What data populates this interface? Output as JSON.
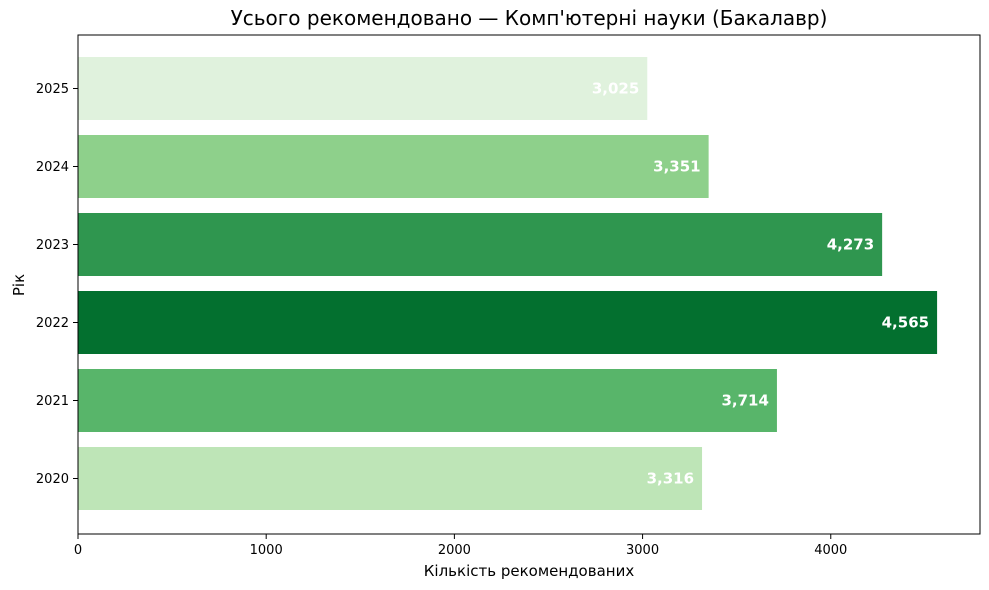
{
  "chart_data": {
    "type": "bar",
    "orientation": "horizontal",
    "title": "Усього рекомендовано — Комп'ютерні науки (Бакалавр)",
    "xlabel": "Кількість рекомендованих",
    "ylabel": "Рік",
    "categories": [
      "2020",
      "2021",
      "2022",
      "2023",
      "2024",
      "2025"
    ],
    "values": [
      3316,
      3714,
      4565,
      4273,
      3351,
      3025
    ],
    "data_labels": [
      "3,316",
      "3,714",
      "4,565",
      "4,273",
      "3,351",
      "3,025"
    ],
    "bar_colors": [
      "#bee5b7",
      "#58b56a",
      "#03702f",
      "#2f964f",
      "#8ed08b",
      "#e0f2dd"
    ],
    "x_ticks": [
      "0",
      "1000",
      "2000",
      "3000",
      "4000"
    ],
    "xlim": [
      0,
      4793
    ],
    "grid": false,
    "legend": "none"
  }
}
